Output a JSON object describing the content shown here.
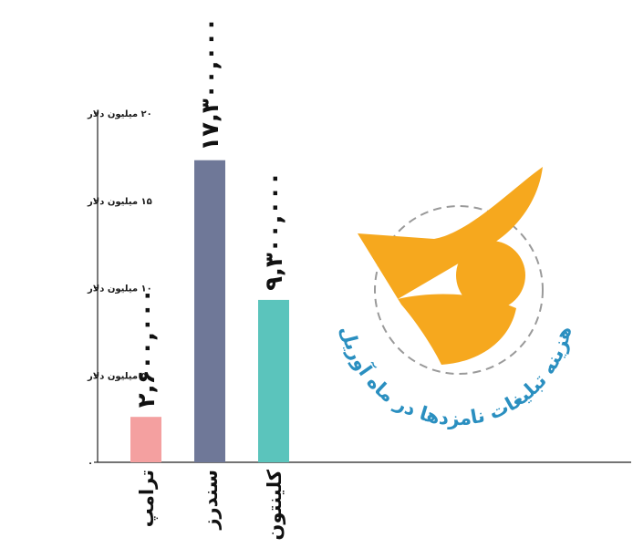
{
  "chart_data": {
    "type": "bar",
    "categories": [
      "ترامپ",
      "سندرز",
      "کلینتون"
    ],
    "values": [
      2.6,
      17.3,
      9.3
    ],
    "data_labels": [
      "۲,۶۰۰,۰۰۰",
      "۱۷,۳۰۰,۰۰۰",
      "۹,۳۰۰,۰۰۰"
    ],
    "colors": [
      "#f4a0a0",
      "#6f7898",
      "#5bc4bc"
    ],
    "ylim": [
      0,
      20
    ],
    "y_ticks": [
      {
        "value": 0,
        "label": "۰"
      },
      {
        "value": 5,
        "label": "۵ میلیون دلار"
      },
      {
        "value": 10,
        "label": "۱۰ میلیون دلار"
      },
      {
        "value": 15,
        "label": "۱۵ میلیون دلار"
      },
      {
        "value": 20,
        "label": "۲۰ میلیون دلار"
      }
    ],
    "grid": false
  },
  "logo": {
    "text": "هزینه تبلیغات نامزدها در ماه آوریل",
    "colors": {
      "flag": "#f6a81e",
      "text": "#2a8fc0",
      "ring": "#9a9a9a"
    }
  }
}
